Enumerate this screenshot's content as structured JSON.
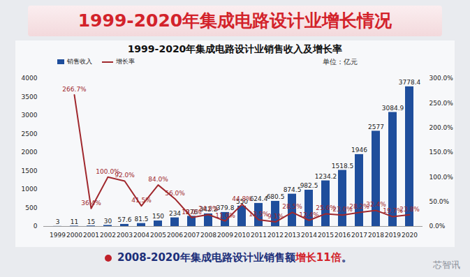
{
  "chart_data": {
    "type": "bar",
    "header": "1999-2020年集成电路设计业增长情况",
    "title": "1999-2020年集成电路设计业销售收入及增长率",
    "unit": "单位：亿元",
    "caption": "2008-2020年集成电路设计业销售额增长11倍。",
    "caption_highlight": "增长11倍",
    "watermark": "芯智讯",
    "categories": [
      "1999",
      "2000",
      "2001",
      "2002",
      "2003",
      "2004",
      "2005",
      "2006",
      "2007",
      "2008",
      "2009",
      "2010",
      "2011",
      "2012",
      "2013",
      "2014",
      "2015",
      "2016",
      "2017",
      "2018",
      "2019",
      "2020"
    ],
    "series": [
      {
        "name": "销售收入",
        "type": "bar",
        "color": "#1f4e9c",
        "data_labels": true,
        "values": [
          3,
          11,
          15,
          30,
          57.6,
          81.5,
          150,
          234,
          276,
          342.2,
          379.8,
          550,
          624.4,
          680.5,
          874.5,
          982.5,
          1234.2,
          1518.5,
          1946,
          2577,
          3084.9,
          3778.4
        ]
      },
      {
        "name": "增长率",
        "type": "line",
        "color": "#a0282d",
        "axis": "y2",
        "data_labels": true,
        "values": [
          null,
          266.7,
          36.4,
          100.0,
          92.0,
          41.5,
          84.0,
          56.0,
          18.0,
          24.0,
          11.0,
          44.8,
          13.5,
          9.1,
          28.5,
          12.4,
          25.6,
          23.0,
          28.2,
          32.4,
          19.7,
          23.8
        ],
        "value_labels": [
          null,
          "266.7%",
          "36.4%",
          "100.0%",
          "92.0%",
          "41.5%",
          "84.0%",
          "56.0%",
          "18.0%",
          "24.0%",
          "11.0%",
          "44.8%",
          "13.5%",
          "9.1%",
          "28.5%",
          "12.4%",
          "25.6%",
          "23.0%",
          "28.2%",
          "32.4%",
          "19.7%",
          "23.8%"
        ]
      }
    ],
    "ylim": [
      0,
      4000
    ],
    "yticks": [
      0,
      500,
      1000,
      1500,
      2000,
      2500,
      3000,
      3500,
      4000
    ],
    "y2lim": [
      0,
      300
    ],
    "y2ticks": [
      {
        "value": 0,
        "label": "0.0%"
      },
      {
        "value": 50,
        "label": "50.0%"
      },
      {
        "value": 100,
        "label": "100.0%"
      },
      {
        "value": 150,
        "label": "150.0%"
      },
      {
        "value": 200,
        "label": "200.0%"
      },
      {
        "value": 250,
        "label": "250.0%"
      },
      {
        "value": 300,
        "label": "300.0%"
      }
    ],
    "grid": false,
    "legend": "top"
  }
}
